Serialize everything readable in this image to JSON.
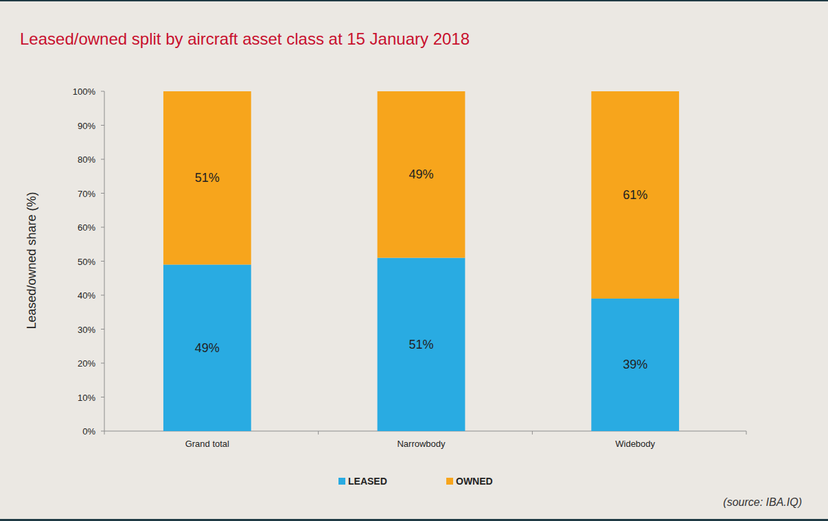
{
  "chart_data": {
    "type": "bar",
    "title": "Leased/owned split by aircraft asset class at 15 January 2018",
    "y_label": "Leased/owned share (%)",
    "annotations": [
      "(source: IBA.IQ)"
    ],
    "categories": [
      "Grand total",
      "Narrowbody",
      "Widebody"
    ],
    "series": [
      {
        "name": "LEASED",
        "color": "#29abe2",
        "values": [
          49,
          51,
          39
        ],
        "value_labels": [
          "49%",
          "51%",
          "39%"
        ]
      },
      {
        "name": "OWNED",
        "color": "#f7a51c",
        "values": [
          51,
          49,
          61
        ],
        "value_labels": [
          "51%",
          "49%",
          "61%"
        ]
      }
    ],
    "ylim": [
      0,
      100
    ],
    "yticks": [
      {
        "value": 0,
        "label": "0%"
      },
      {
        "value": 10,
        "label": "10%"
      },
      {
        "value": 20,
        "label": "20%"
      },
      {
        "value": 30,
        "label": "30%"
      },
      {
        "value": 40,
        "label": "40%"
      },
      {
        "value": 50,
        "label": "50%"
      },
      {
        "value": 60,
        "label": "60%"
      },
      {
        "value": 70,
        "label": "70%"
      },
      {
        "value": 80,
        "label": "80%"
      },
      {
        "value": 90,
        "label": "90%"
      },
      {
        "value": 100,
        "label": "100%"
      }
    ],
    "stacked": true,
    "grid": false,
    "legend": "bottom",
    "data_labels": true
  }
}
